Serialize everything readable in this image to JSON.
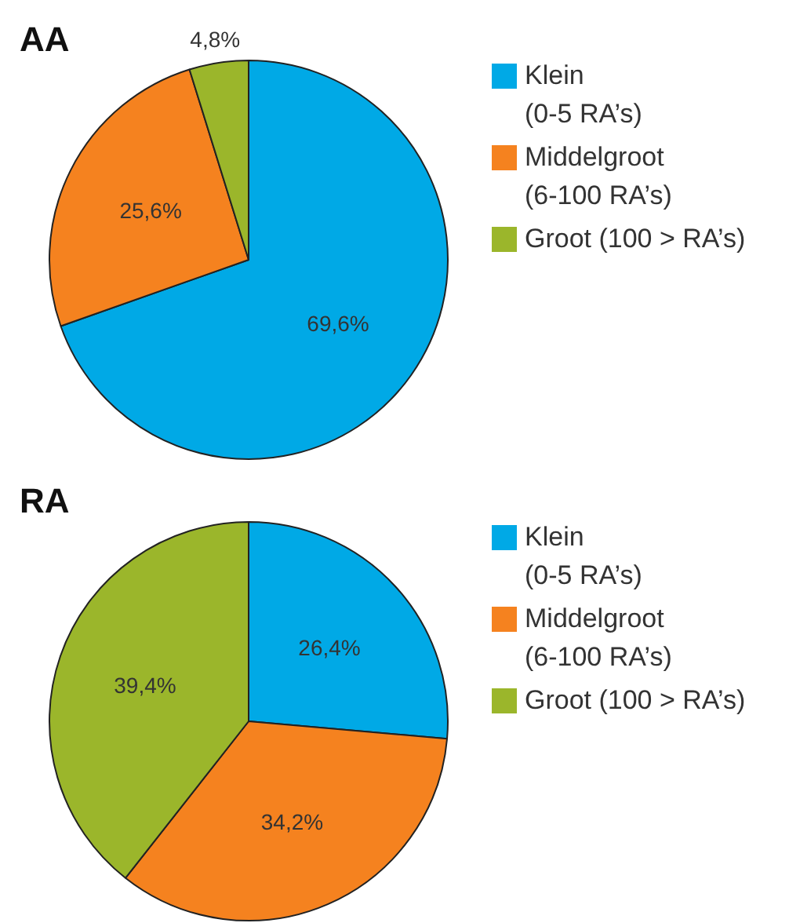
{
  "chart_data": [
    {
      "type": "pie",
      "title": "AA",
      "categories": [
        "Klein\n(0-5 RA’s)",
        "Middelgroot\n(6-100 RA’s)",
        "Groot (100 > RA’s)"
      ],
      "values": [
        69.6,
        25.6,
        4.8
      ],
      "colors": [
        "#00a9e6",
        "#f5821f",
        "#9bb62b"
      ],
      "value_labels": [
        "69,6%",
        "25,6%",
        "4,8%"
      ],
      "legend": "right"
    },
    {
      "type": "pie",
      "title": "RA",
      "categories": [
        "Klein\n(0-5 RA’s)",
        "Middelgroot\n(6-100 RA’s)",
        "Groot (100 > RA’s)"
      ],
      "values": [
        26.4,
        34.2,
        39.4
      ],
      "colors": [
        "#00a9e6",
        "#f5821f",
        "#9bb62b"
      ],
      "value_labels": [
        "26,4%",
        "34,2%",
        "39,4%"
      ],
      "legend": "right"
    }
  ]
}
